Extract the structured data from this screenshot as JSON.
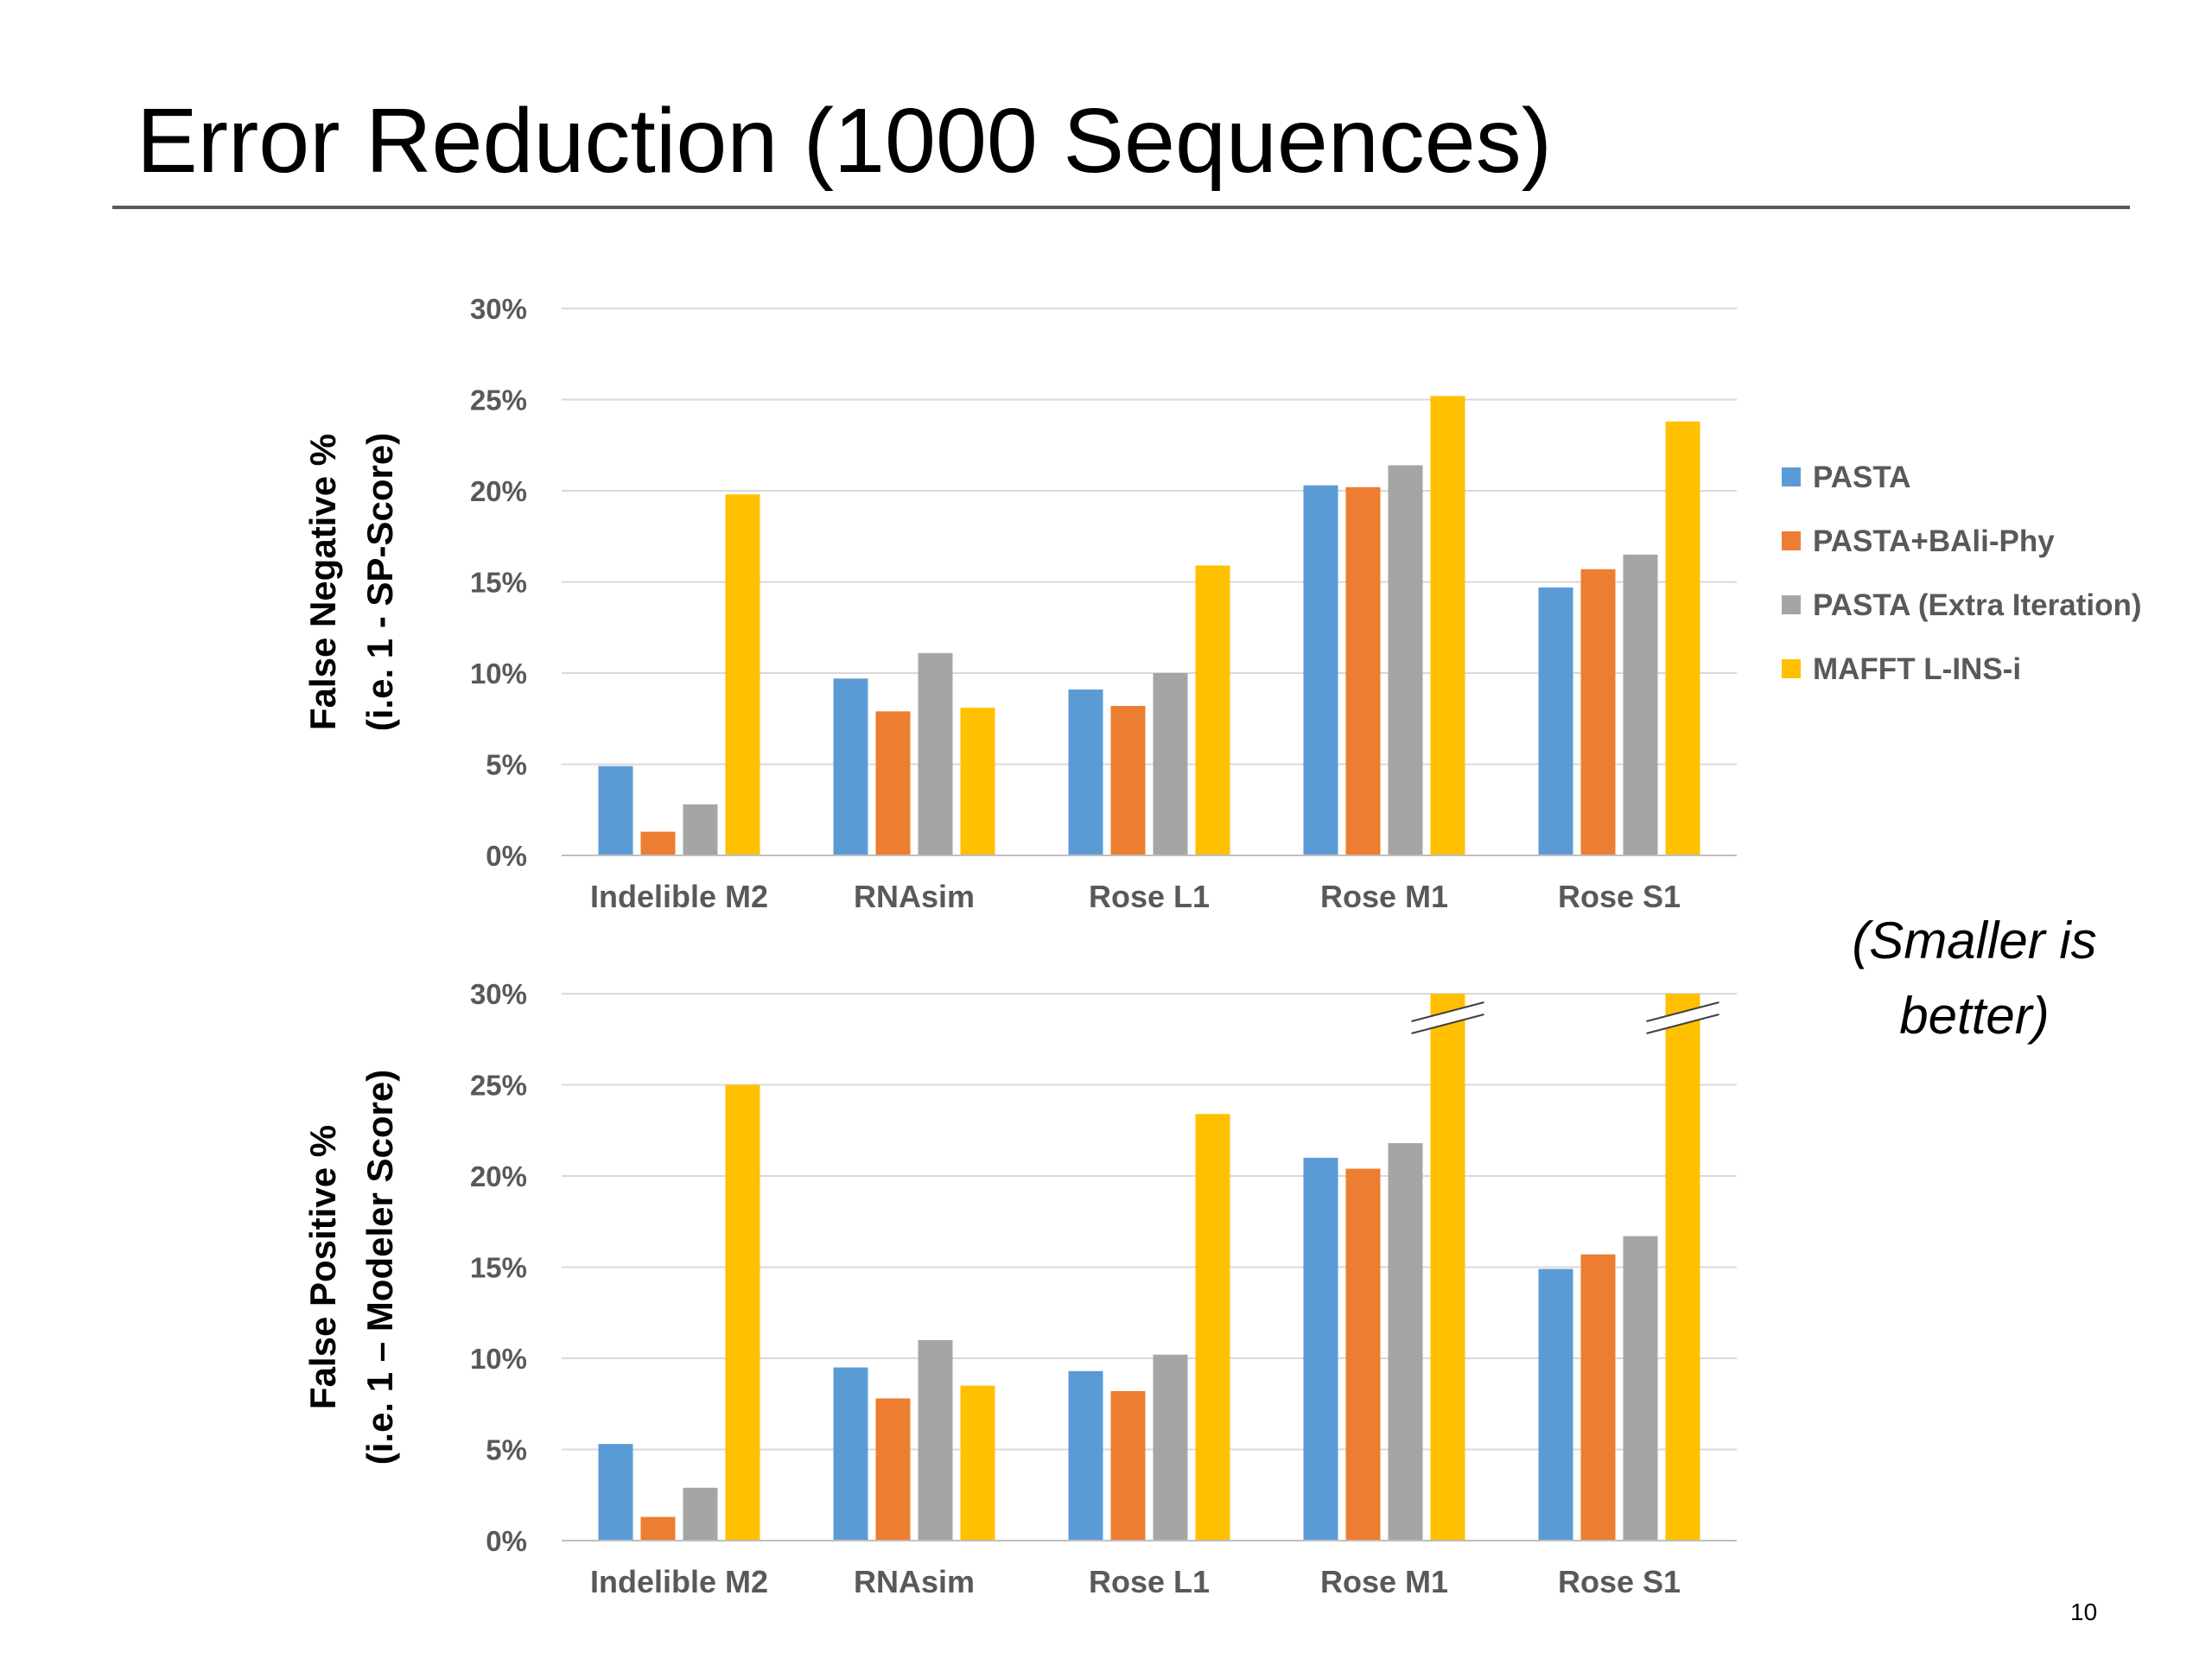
{
  "slide": {
    "title": "Error Reduction (1000 Sequences)",
    "note": "(Smaller is better)",
    "page_number": "10"
  },
  "legend": {
    "placement": "right",
    "entries": [
      "PASTA",
      "PASTA+BAli-Phy",
      "PASTA (Extra Iteration)",
      "MAFFT L-INS-i"
    ]
  },
  "colors": {
    "PASTA": "#5B9BD5",
    "PASTA+BAli-Phy": "#ED7D31",
    "PASTA (Extra Iteration)": "#A5A5A5",
    "MAFFT L-INS-i": "#FFC000",
    "grid": "#D9D9D9",
    "tick_text": "#595959"
  },
  "chart_data": [
    {
      "type": "bar",
      "ylabel_line1": "False Negative %",
      "ylabel_line2": "(i.e. 1 - SP-Score)",
      "categories": [
        "Indelible M2",
        "RNAsim",
        "Rose L1",
        "Rose M1",
        "Rose S1"
      ],
      "yticks": [
        "0%",
        "5%",
        "10%",
        "15%",
        "20%",
        "25%",
        "30%"
      ],
      "ylim": [
        0,
        30
      ],
      "grid": true,
      "series": [
        {
          "name": "PASTA",
          "values": [
            4.9,
            9.7,
            9.1,
            20.3,
            14.7
          ]
        },
        {
          "name": "PASTA+BAli-Phy",
          "values": [
            1.3,
            7.9,
            8.2,
            20.2,
            15.7
          ]
        },
        {
          "name": "PASTA (Extra Iteration)",
          "values": [
            2.8,
            11.1,
            10.0,
            21.4,
            16.5
          ]
        },
        {
          "name": "MAFFT L-INS-i",
          "values": [
            19.8,
            8.1,
            15.9,
            25.2,
            23.8
          ]
        }
      ]
    },
    {
      "type": "bar",
      "ylabel_line1": "False Positive %",
      "ylabel_line2": "(i.e. 1 – Modeler Score)",
      "categories": [
        "Indelible M2",
        "RNAsim",
        "Rose L1",
        "Rose M1",
        "Rose S1"
      ],
      "yticks": [
        "0%",
        "5%",
        "10%",
        "15%",
        "20%",
        "25%",
        "30%"
      ],
      "ylim": [
        0,
        30
      ],
      "grid": true,
      "axis_break": "MAFFT L-INS-i bars for Rose M1 and Rose S1 exceed 30% (broken bars)",
      "series": [
        {
          "name": "PASTA",
          "values": [
            5.3,
            9.5,
            9.3,
            21.0,
            14.9
          ]
        },
        {
          "name": "PASTA+BAli-Phy",
          "values": [
            1.3,
            7.8,
            8.2,
            20.4,
            15.7
          ]
        },
        {
          "name": "PASTA (Extra Iteration)",
          "values": [
            2.9,
            11.0,
            10.2,
            21.8,
            16.7
          ]
        },
        {
          "name": "MAFFT L-INS-i",
          "values": [
            25.0,
            8.5,
            23.4,
            30.0,
            30.0
          ]
        }
      ]
    }
  ]
}
